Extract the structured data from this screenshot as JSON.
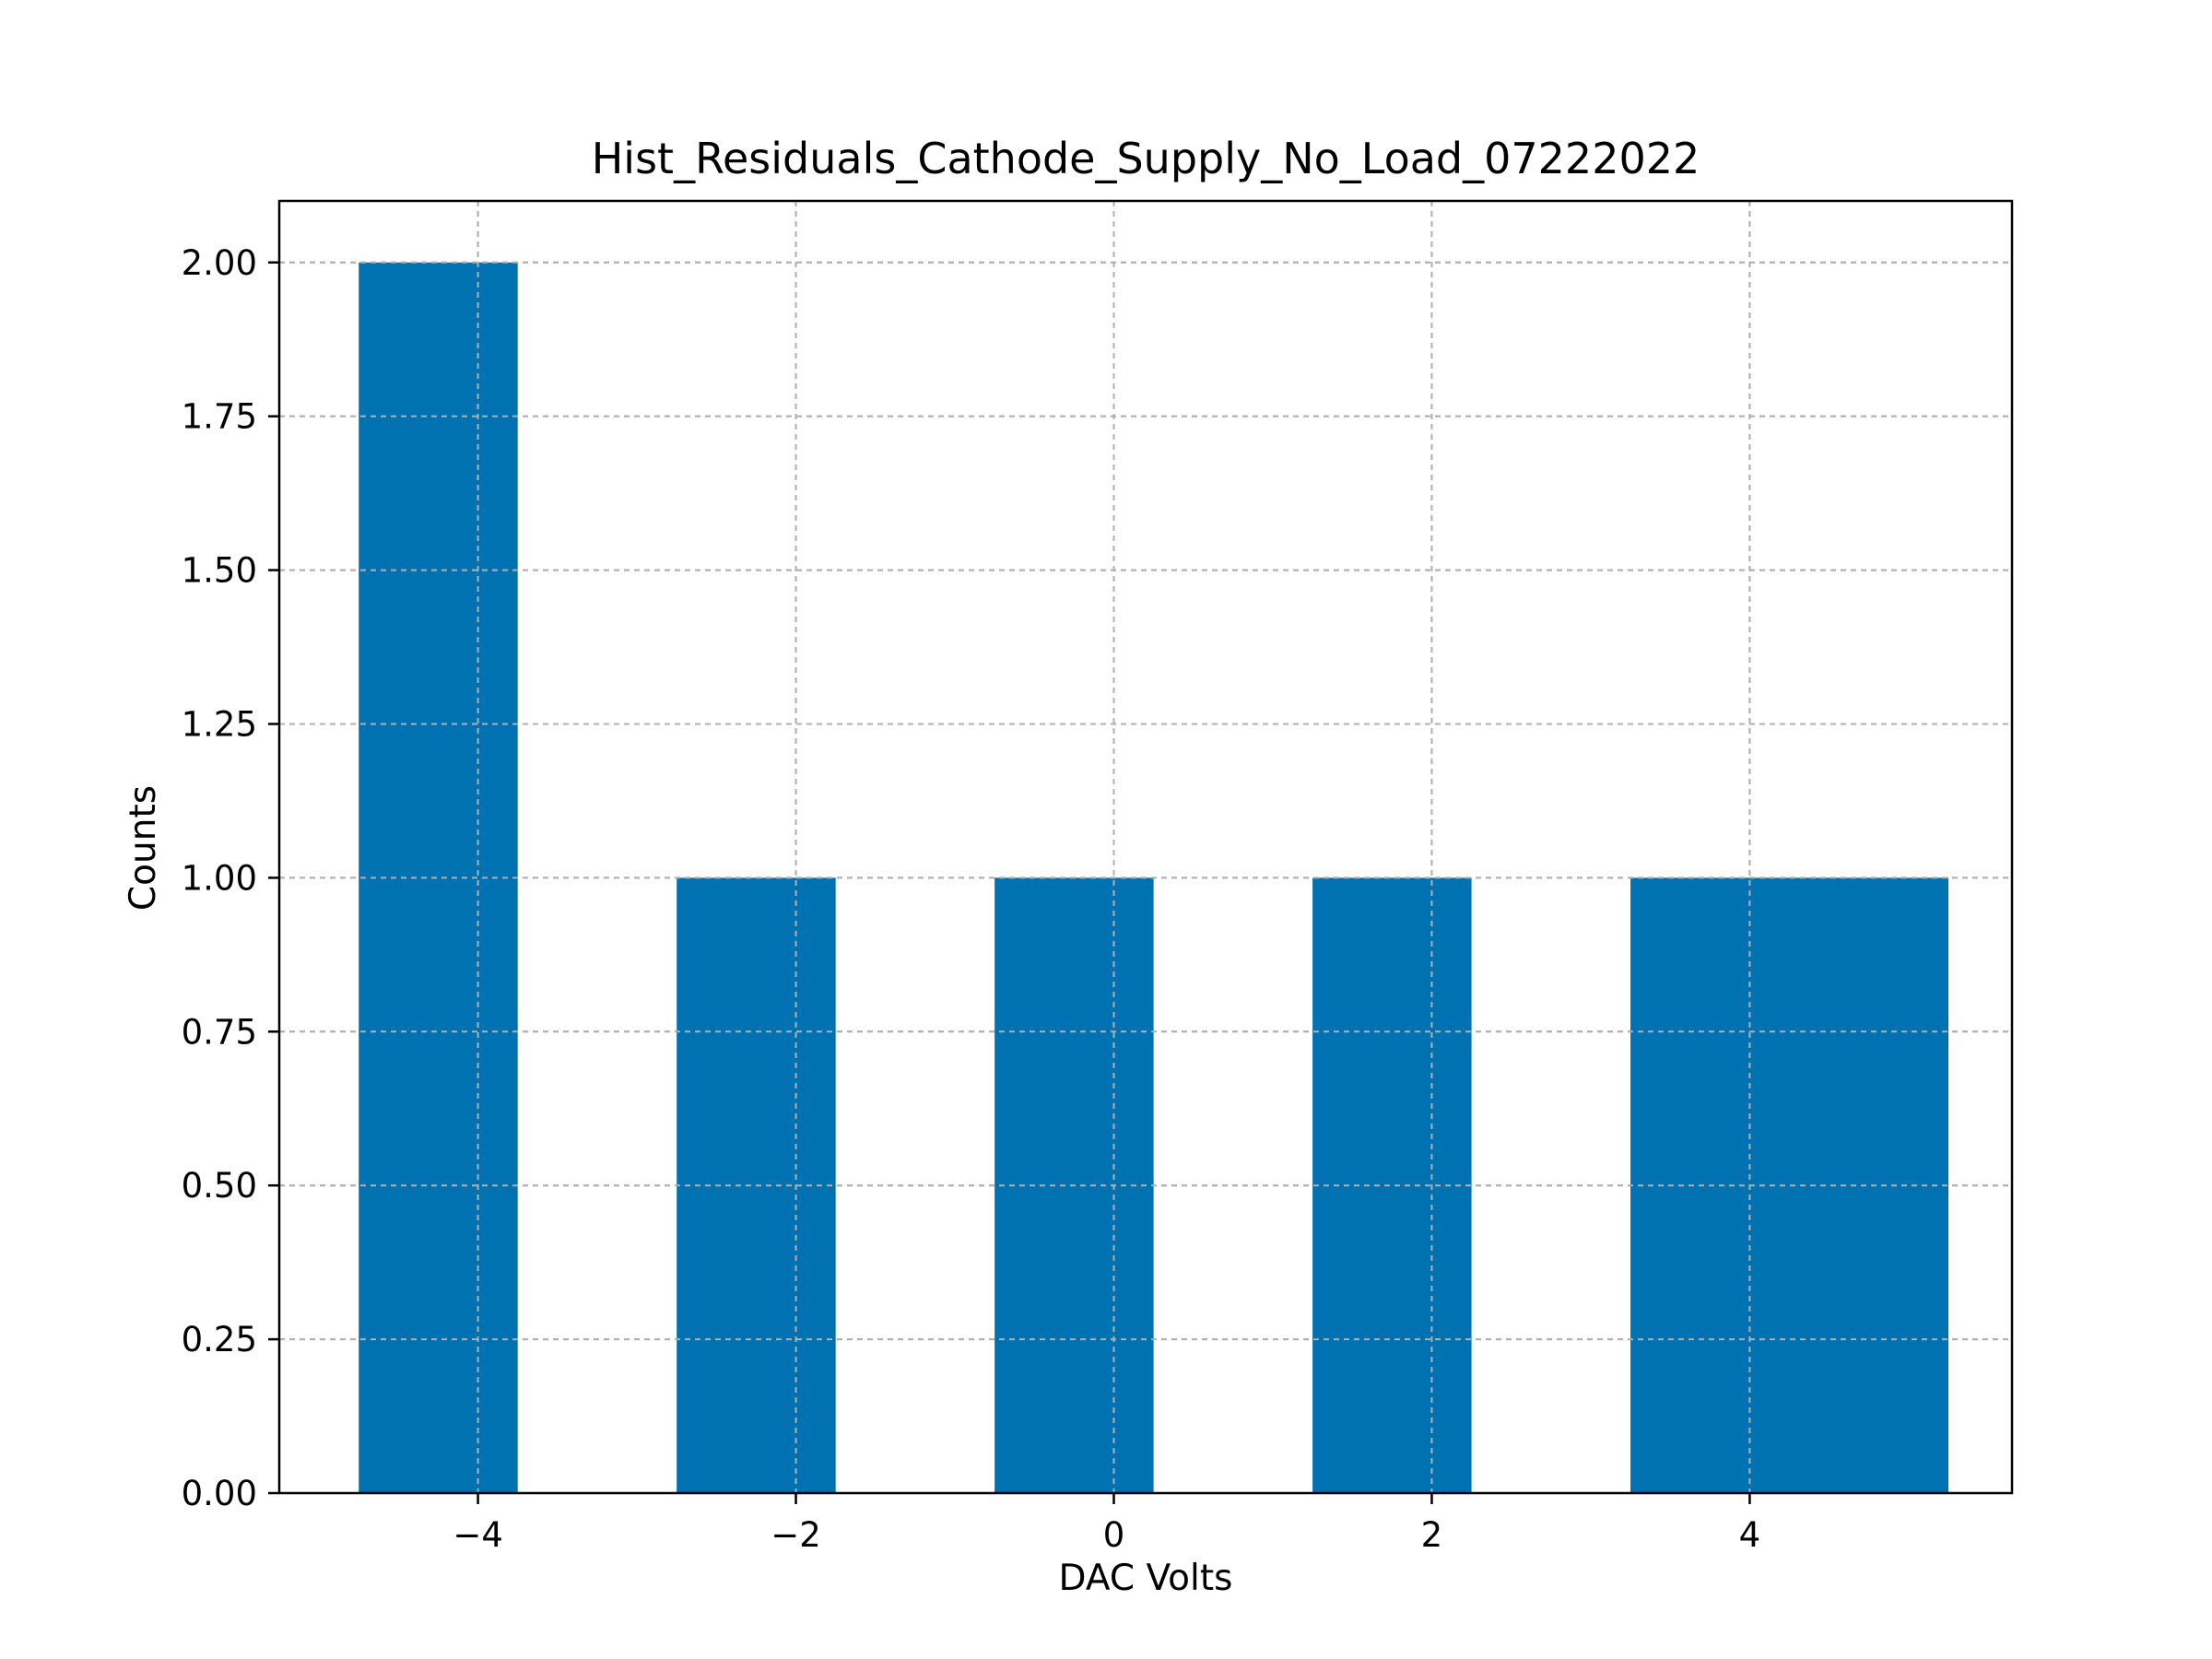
{
  "chart_data": {
    "type": "bar",
    "title": "Hist_Residuals_Cathode_Supply_No_Load_07222022",
    "xlabel": "DAC Volts",
    "ylabel": "Counts",
    "xlim": [
      -5.25,
      5.65
    ],
    "ylim": [
      0,
      2.1
    ],
    "xticks": [
      -4,
      -2,
      0,
      2,
      4
    ],
    "xtick_labels": [
      "−4",
      "−2",
      "0",
      "2",
      "4"
    ],
    "yticks": [
      0,
      0.25,
      0.5,
      0.75,
      1.0,
      1.25,
      1.5,
      1.75,
      2.0
    ],
    "ytick_labels": [
      "0.00",
      "0.25",
      "0.50",
      "0.75",
      "1.00",
      "1.25",
      "1.50",
      "1.75",
      "2.00"
    ],
    "bins": [
      {
        "x0": -4.75,
        "x1": -3.75,
        "count": 2
      },
      {
        "x0": -2.75,
        "x1": -1.75,
        "count": 1
      },
      {
        "x0": -0.75,
        "x1": 0.25,
        "count": 1
      },
      {
        "x0": 1.25,
        "x1": 2.25,
        "count": 1
      },
      {
        "x0": 3.25,
        "x1": 5.25,
        "count": 1
      }
    ],
    "bar_color": "#0072b2",
    "grid": true,
    "legend": null
  }
}
